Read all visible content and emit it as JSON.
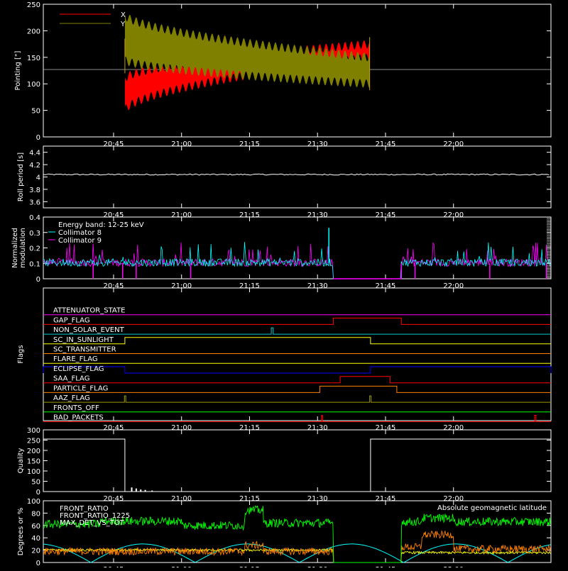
{
  "x_ticks": [
    "20:45",
    "21:00",
    "21:15",
    "21:30",
    "21:45",
    "22:00"
  ],
  "x_tick_minutes": [
    1245,
    1260,
    1275,
    1290,
    1305,
    1320
  ],
  "x_range_minutes": [
    1229.5,
    1341.5
  ],
  "chart_data": [
    {
      "type": "line",
      "ylabel": "Pointing [\"]",
      "ylim": [
        0,
        250
      ],
      "y_ticks": [
        0,
        50,
        100,
        150,
        200,
        250
      ],
      "legend": [
        {
          "name": "X",
          "color": "#ff0000"
        },
        {
          "name": "Y",
          "color": "#808000"
        }
      ],
      "reference_line": 127,
      "series": [
        {
          "name": "X",
          "color": "#ff0000",
          "x_range": [
            1247.5,
            1301.5
          ],
          "start_band": [
            50,
            110
          ],
          "end_band": [
            150,
            175
          ]
        },
        {
          "name": "Y",
          "color": "#808000",
          "x_range": [
            1247.5,
            1301.5
          ],
          "start_band": [
            145,
            230
          ],
          "end_band": [
            100,
            150
          ]
        }
      ]
    },
    {
      "type": "line",
      "ylabel": "Roll period [s]",
      "ylim": [
        3.5,
        4.5
      ],
      "y_ticks": [
        3.6,
        3.8,
        4.0,
        4.2,
        4.4
      ],
      "series": [
        {
          "color": "#ffffff",
          "level": 4.04
        }
      ]
    },
    {
      "type": "line",
      "ylabel_lines": [
        "Normalized",
        "modulation"
      ],
      "ylim": [
        0,
        0.4
      ],
      "y_ticks": [
        0.0,
        0.1,
        0.2,
        0.3,
        0.4
      ],
      "legend": [
        {
          "name": "Energy band: 12-25 keV",
          "color": "#ffffff"
        },
        {
          "name": "Collimator 8",
          "color": "#00ffff"
        },
        {
          "name": "Collimator 9",
          "color": "#ff00ff"
        }
      ],
      "gaps": [
        [
          1293.5,
          1308.5
        ]
      ],
      "dips": [
        1240.5,
        1247.0,
        1250.0,
        1262.0,
        1308.5,
        1311.5,
        1328.0,
        1340.5
      ],
      "spike": {
        "x": 1292.5,
        "y": 0.33
      }
    },
    {
      "type": "line",
      "ylabel": "Flags",
      "flags": [
        {
          "name": "ATTENUATOR_STATE",
          "color": "#ff00ff",
          "high": []
        },
        {
          "name": "GAP_FLAG",
          "color": "#ff0000",
          "high": [
            [
              1293.5,
              1308.5
            ]
          ]
        },
        {
          "name": "NON_SOLAR_EVENT",
          "color": "#00cccc",
          "high": [
            [
              1279.8,
              1280.2
            ]
          ]
        },
        {
          "name": "SC_IN_SUNLIGHT",
          "color": "#ffff00",
          "high": [
            [
              1247.5,
              1301.7
            ]
          ]
        },
        {
          "name": "SC_TRANSMITTER",
          "color": "#ff8000",
          "high": []
        },
        {
          "name": "FLARE_FLAG",
          "color": "#ffff00",
          "high": []
        },
        {
          "name": "ECLIPSE_FLAG",
          "color": "#0000ff",
          "high": [
            [
              1229.5,
              1247.5
            ],
            [
              1301.7,
              1341.5
            ]
          ]
        },
        {
          "name": "SAA_FLAG",
          "color": "#ff0000",
          "high": [
            [
              1295.0,
              1306.0
            ]
          ]
        },
        {
          "name": "PARTICLE_FLAG",
          "color": "#ff8000",
          "high": [
            [
              1290.5,
              1307.5
            ]
          ]
        },
        {
          "name": "AAZ_FLAG",
          "color": "#999900",
          "high": [
            [
              1247.4,
              1247.7
            ],
            [
              1301.5,
              1301.8
            ]
          ]
        },
        {
          "name": "FRONTS_OFF",
          "color": "#00ff00",
          "high": []
        },
        {
          "name": "BAD_PACKETS",
          "color": "#ff0000",
          "high": [
            [
              1290.9,
              1291.1
            ],
            [
              1337.9,
              1338.2
            ]
          ]
        }
      ]
    },
    {
      "type": "line",
      "ylabel": "Quality",
      "ylim": [
        0,
        300
      ],
      "y_ticks": [
        0,
        50,
        100,
        150,
        200,
        250,
        300
      ],
      "series": [
        {
          "color": "#ffffff",
          "segments": [
            [
              [
                1229.5,
                255
              ],
              [
                1247.5,
                255
              ],
              [
                1247.5,
                0
              ]
            ],
            [
              [
                1301.7,
                0
              ],
              [
                1301.7,
                255
              ],
              [
                1341.5,
                255
              ]
            ]
          ]
        }
      ],
      "bumps": [
        [
          1249.0,
          20
        ],
        [
          1250.0,
          15
        ],
        [
          1251.0,
          10
        ],
        [
          1252.0,
          8
        ],
        [
          1253.5,
          5
        ]
      ]
    },
    {
      "type": "line",
      "ylabel": "Degrees or %",
      "ylim": [
        0,
        100
      ],
      "y_ticks": [
        0,
        20,
        40,
        60,
        80,
        100
      ],
      "legend": [
        {
          "name": "FRONT_RATIO",
          "color": "#ffff00"
        },
        {
          "name": "FRONT_RATIO_1225",
          "color": "#00ff00"
        },
        {
          "name": "MAX_DET_VS_TOT",
          "color": "#ff8000"
        },
        {
          "name": "Absolute geomagnetic latitude",
          "color": "#00ffff"
        }
      ],
      "gaps": [
        [
          1293.5,
          1308.5
        ]
      ],
      "green_levels": [
        [
          1229.5,
          62
        ],
        [
          1242.0,
          67
        ],
        [
          1260.0,
          60
        ],
        [
          1274.0,
          85
        ],
        [
          1278.0,
          64
        ],
        [
          1293.5,
          64
        ],
        [
          1308.5,
          66
        ],
        [
          1313.0,
          72
        ],
        [
          1320.0,
          66
        ],
        [
          1341.5,
          66
        ]
      ],
      "orange_levels": [
        [
          1229.5,
          18
        ],
        [
          1274.0,
          28
        ],
        [
          1278.0,
          18
        ],
        [
          1293.5,
          20
        ],
        [
          1308.5,
          25
        ],
        [
          1313.0,
          45
        ],
        [
          1320.0,
          22
        ],
        [
          1341.5,
          28
        ]
      ],
      "yellow_levels": [
        [
          1229.5,
          20
        ],
        [
          1293.5,
          20
        ],
        [
          1308.5,
          16
        ],
        [
          1341.5,
          18
        ]
      ],
      "latitude": {
        "amplitude": 30,
        "period_minutes": 46,
        "phase_minutes": 1240
      }
    }
  ]
}
